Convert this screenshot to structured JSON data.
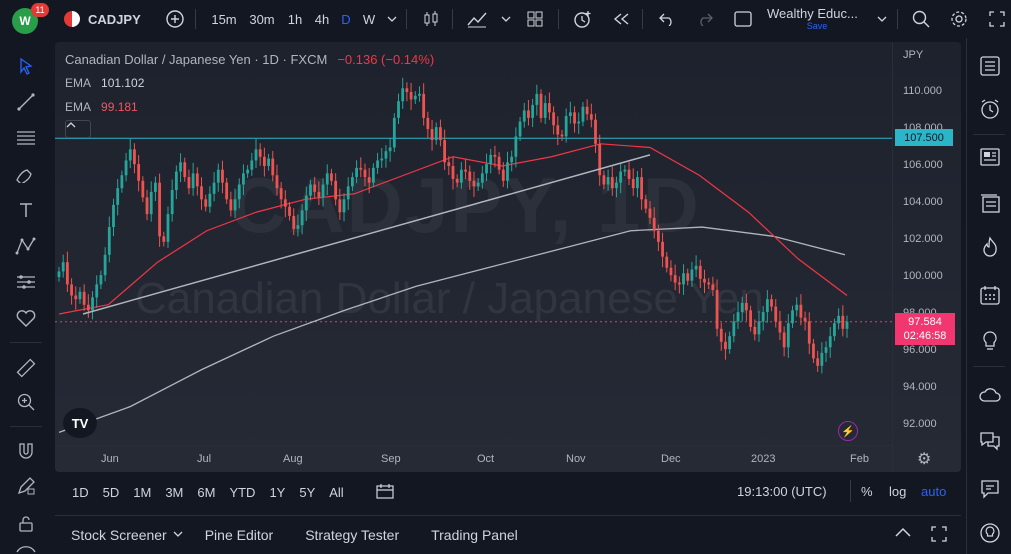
{
  "topbar": {
    "notification_count": "11",
    "symbol": "CADJPY",
    "intervals": [
      "15m",
      "30m",
      "1h",
      "4h",
      "D",
      "W"
    ],
    "active_interval": "D",
    "layout_name": "Wealthy Educ...",
    "layout_status": "Save"
  },
  "legend": {
    "title": "Canadian Dollar / Japanese Yen · 1D · FXCM",
    "change": "−0.136 (−0.14%)",
    "ema1_label": "EMA",
    "ema1_value": "101.102",
    "ema2_label": "EMA",
    "ema2_value": "99.181"
  },
  "watermark": {
    "line1": "CADJPY, 1D",
    "line2": "Canadian Dollar / Japanese Yen"
  },
  "price_axis": {
    "currency": "JPY",
    "ticks": [
      "110.000",
      "108.000",
      "106.000",
      "104.000",
      "102.000",
      "100.000",
      "98.000",
      "96.000",
      "94.000",
      "92.000"
    ],
    "horizontal_line_label": "107.500",
    "last_price": "97.584",
    "countdown": "02:46:58"
  },
  "time_axis": {
    "labels": [
      "Jun",
      "Jul",
      "Aug",
      "Sep",
      "Oct",
      "Nov",
      "Dec",
      "2023",
      "Feb"
    ]
  },
  "range_bar": {
    "ranges": [
      "1D",
      "5D",
      "1M",
      "3M",
      "6M",
      "YTD",
      "1Y",
      "5Y",
      "All"
    ],
    "clock": "19:13:00 (UTC)",
    "percent": "%",
    "log": "log",
    "auto": "auto"
  },
  "bottom_tabs": [
    "Stock Screener",
    "Pine Editor",
    "Strategy Tester",
    "Trading Panel"
  ],
  "colors": {
    "up": "#26a69a",
    "down": "#ef5350",
    "ema_fast": "#f23645",
    "ema_slow": "#b2b5be",
    "hline": "#2bb5c8",
    "auto": "#2962ff"
  },
  "chart_data": {
    "type": "candlestick",
    "symbol": "CADJPY",
    "interval": "1D",
    "ylim": [
      91.0,
      111.5
    ],
    "horizontal_line": 107.5,
    "last_price": 97.584,
    "trendline": {
      "from_price": 98.0,
      "from_month": "May",
      "to_price": 106.6,
      "to_month": "Nov"
    },
    "ema_fast_path": [
      98.0,
      98.5,
      100.8,
      102.5,
      103.5,
      104.2,
      104.5,
      105.5,
      106.5,
      106.0,
      106.5,
      107.2,
      107.0,
      105.5,
      103.5,
      101.0,
      99.0
    ],
    "ema_slow_path": [
      91.6,
      93.0,
      95.0,
      96.8,
      98.2,
      99.5,
      100.5,
      101.5,
      102.5,
      102.7,
      102.2,
      101.2
    ],
    "closes": [
      100.3,
      100.8,
      99.6,
      99.0,
      98.8,
      99.2,
      98.5,
      98.2,
      98.9,
      99.6,
      100.1,
      101.2,
      102.7,
      103.9,
      104.8,
      105.5,
      106.3,
      106.9,
      106.1,
      105.2,
      104.3,
      103.4,
      104.6,
      105.1,
      102.2,
      101.9,
      103.4,
      104.7,
      105.7,
      106.2,
      105.4,
      104.8,
      105.6,
      104.9,
      104.2,
      103.8,
      104.5,
      105.1,
      105.8,
      105.1,
      104.2,
      103.6,
      104.2,
      105.0,
      105.6,
      105.8,
      106.3,
      106.9,
      106.5,
      106.0,
      106.4,
      105.5,
      104.8,
      104.2,
      103.8,
      103.3,
      102.6,
      102.8,
      103.6,
      104.4,
      105.0,
      104.6,
      104.3,
      105.0,
      105.6,
      105.2,
      104.2,
      103.5,
      104.2,
      104.9,
      105.4,
      105.9,
      105.8,
      105.4,
      105.1,
      105.9,
      106.3,
      106.4,
      106.8,
      107.0,
      108.6,
      109.5,
      110.2,
      110.0,
      109.6,
      109.8,
      109.9,
      108.6,
      108.0,
      107.4,
      108.1,
      107.4,
      106.2,
      106.0,
      105.3,
      105.1,
      105.8,
      105.7,
      105.2,
      104.9,
      105.1,
      105.6,
      106.1,
      106.6,
      106.5,
      105.8,
      105.2,
      106.2,
      106.5,
      107.6,
      108.4,
      109.0,
      108.6,
      109.3,
      109.9,
      108.6,
      109.4,
      108.9,
      108.2,
      107.7,
      107.6,
      108.7,
      108.9,
      108.3,
      108.4,
      109.2,
      108.8,
      108.5,
      107.2,
      105.5,
      105.0,
      105.4,
      104.8,
      105.1,
      105.7,
      105.8,
      105.3,
      104.8,
      105.4,
      104.2,
      103.7,
      103.2,
      102.5,
      101.9,
      101.1,
      100.5,
      100.1,
      99.7,
      99.6,
      100.2,
      99.8,
      100.4,
      100.6,
      99.9,
      99.7,
      99.6,
      99.3,
      97.2,
      96.5,
      96.1,
      96.8,
      97.6,
      98.1,
      98.6,
      98.2,
      97.3,
      96.9,
      97.6,
      98.1,
      98.8,
      98.4,
      97.6,
      97.0,
      96.2,
      97.5,
      98.2,
      98.5,
      97.8,
      97.6,
      96.4,
      95.6,
      95.2,
      95.9,
      96.2,
      96.8,
      97.5,
      97.9,
      97.2,
      97.584
    ]
  }
}
